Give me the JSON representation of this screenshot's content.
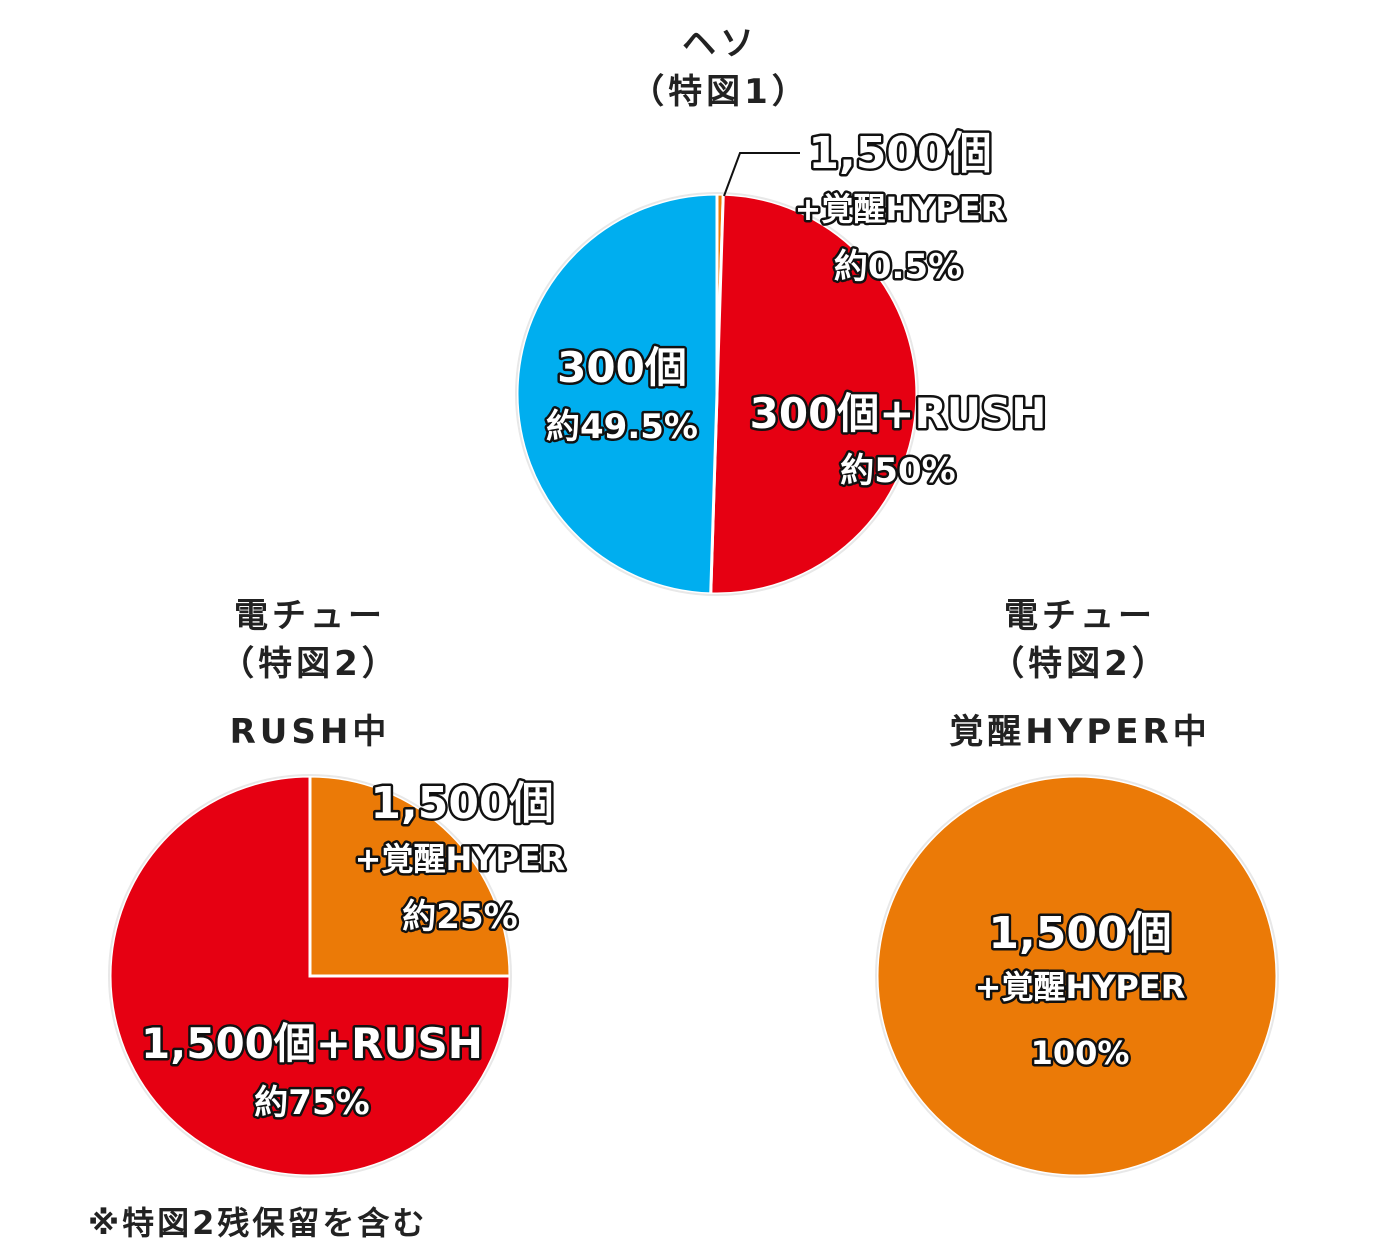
{
  "chart_data": [
    {
      "type": "pie",
      "title_line1": "ヘソ",
      "title_line2": "（特図1）",
      "title_line3": "",
      "colors": [
        "#eb7a07",
        "#e60012",
        "#00aeef"
      ],
      "slices": [
        {
          "label_main": "1,500個",
          "label_sub": "+覚醒HYPER",
          "pct_text": "約0.5%",
          "value": 0.5,
          "color": "#eb7a07"
        },
        {
          "label_main": "300個+RUSH",
          "label_sub": "",
          "pct_text": "約50%",
          "value": 50,
          "color": "#e60012"
        },
        {
          "label_main": "300個",
          "label_sub": "",
          "pct_text": "約49.5%",
          "value": 49.5,
          "color": "#00aeef"
        }
      ]
    },
    {
      "type": "pie",
      "title_line1": "電チュー",
      "title_line2": "（特図2）",
      "title_line3": "RUSH中",
      "slices": [
        {
          "label_main": "1,500個",
          "label_sub": "+覚醒HYPER",
          "pct_text": "約25%",
          "value": 25,
          "color": "#eb7a07"
        },
        {
          "label_main": "1,500個+RUSH",
          "label_sub": "",
          "pct_text": "約75%",
          "value": 75,
          "color": "#e60012"
        }
      ]
    },
    {
      "type": "pie",
      "title_line1": "電チュー",
      "title_line2": "（特図2）",
      "title_line3": "覚醒HYPER中",
      "slices": [
        {
          "label_main": "1,500個",
          "label_sub": "+覚醒HYPER",
          "pct_text": "100%",
          "value": 100,
          "color": "#eb7a07"
        }
      ]
    }
  ],
  "footnote": "※特図2残保留を含む"
}
